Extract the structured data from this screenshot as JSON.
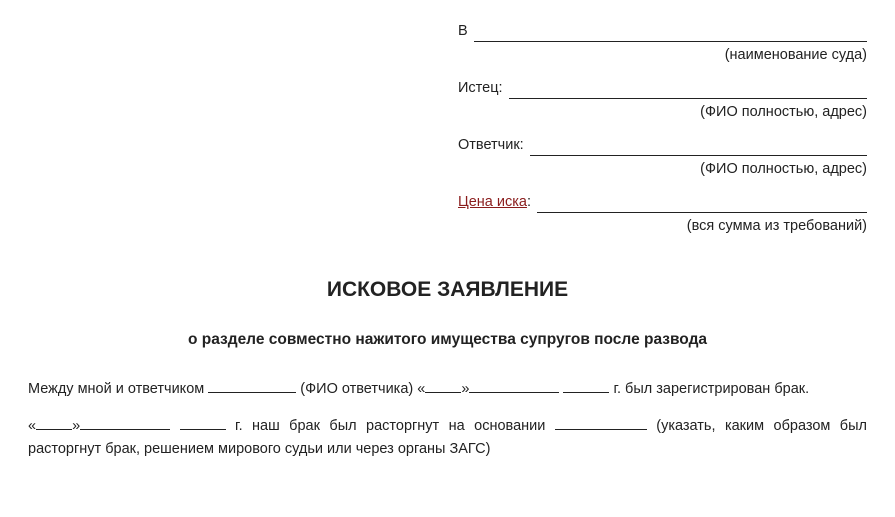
{
  "header": {
    "to_label": "В",
    "to_hint": "(наименование суда)",
    "plaintiff_label": "Истец:",
    "plaintiff_hint": "(ФИО полностью, адрес)",
    "defendant_label": "Ответчик:",
    "defendant_hint": "(ФИО полностью, адрес)",
    "claimprice_label": "Цена иска",
    "claimprice_colon": ":",
    "claimprice_hint": "(вся сумма из требований)"
  },
  "title_main": "ИСКОВОЕ ЗАЯВЛЕНИЕ",
  "title_sub": "о разделе совместно нажитого имущества супругов после развода",
  "para1": {
    "t1": "Между мной и ответчиком ",
    "t2": " (ФИО ответчика) «",
    "t3": "»",
    "t4": " ",
    "t5": " г. был зарегистрирован брак."
  },
  "para2": {
    "t1": "«",
    "t2": "»",
    "t3": " ",
    "t4": " г. наш брак был расторгнут на основании ",
    "t5": " (указать, каким образом был расторгнут брак, решением мирового судьи или через органы ЗАГС)"
  },
  "blanks": {
    "w_short": 36,
    "w_med": 90,
    "w_year": 46,
    "w_def": 88,
    "w_basis": 92
  }
}
